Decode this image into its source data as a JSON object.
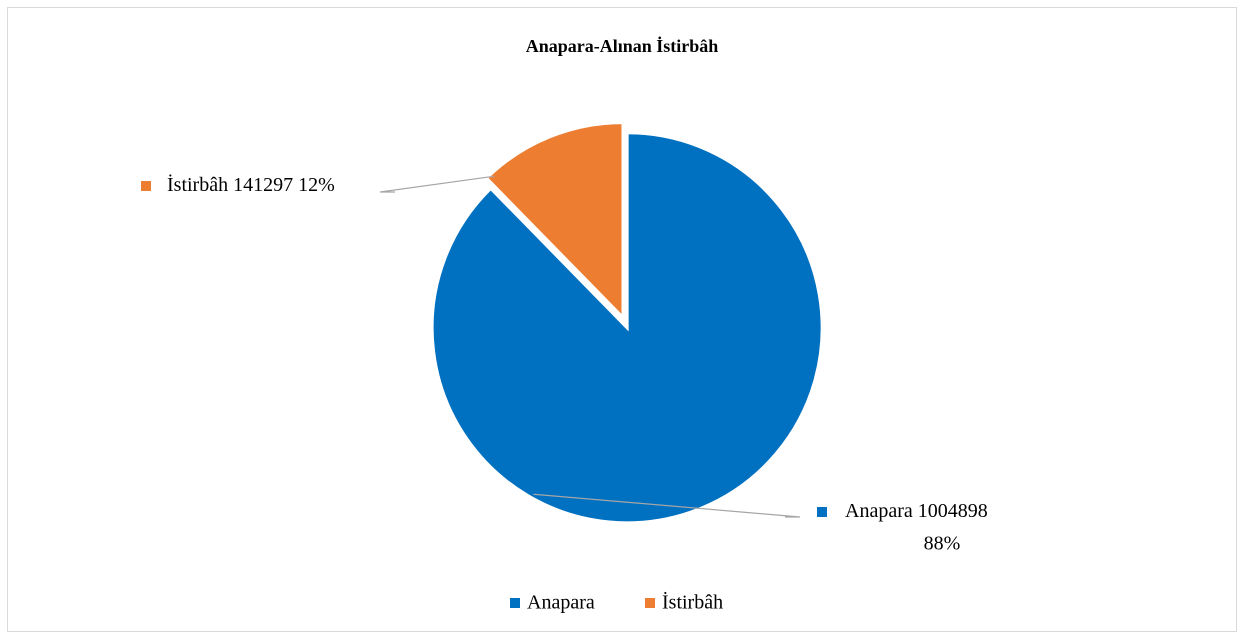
{
  "chart_data": {
    "type": "pie",
    "title": "Anapara-Alınan İstirbâh",
    "categories": [
      "Anapara",
      "İstirbâh"
    ],
    "values": [
      1004898,
      141297
    ],
    "percent_labels": [
      "88%",
      "12%"
    ],
    "colors": [
      "#0070c0",
      "#ed7d31"
    ],
    "legend": "bottom"
  }
}
